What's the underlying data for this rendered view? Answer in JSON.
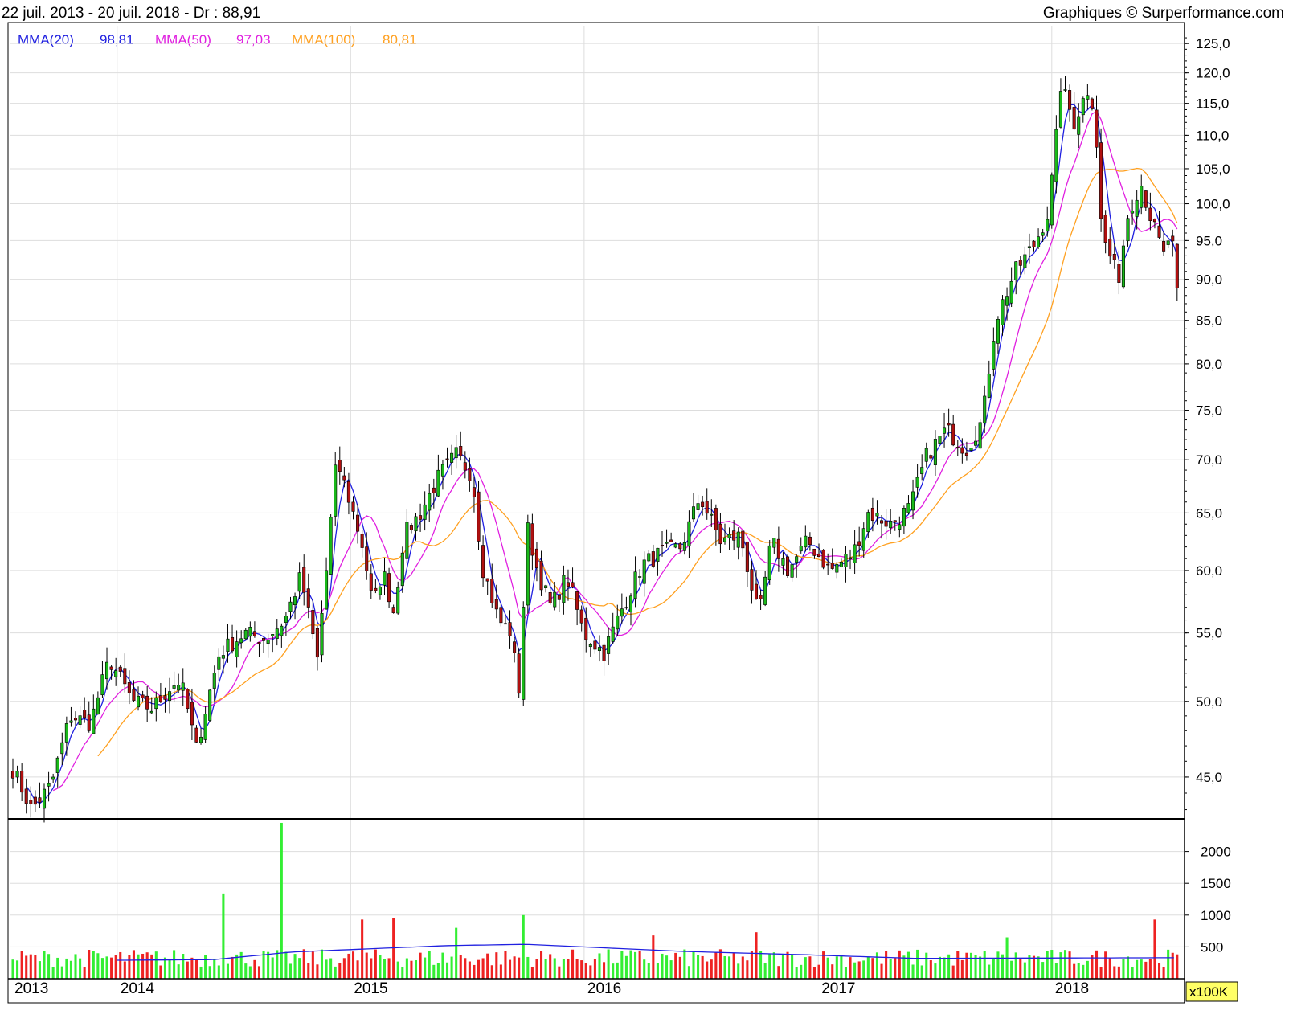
{
  "header": {
    "range": "22 juil. 2013 - 20 juil. 2018 - Dr : 88,91",
    "credit": "Graphiques © Surperformance.com"
  },
  "legend": [
    {
      "label": "MMA(20)",
      "value": "98,81",
      "color": "#2020e0"
    },
    {
      "label": "MMA(50)",
      "value": "97,03",
      "color": "#e020e0"
    },
    {
      "label": "MMA(100)",
      "value": "80,81",
      "color": "#ffa020"
    }
  ],
  "colors": {
    "up": "#1ab91a",
    "down": "#b01010",
    "vol_up": "#33ee33",
    "vol_down": "#ee2222",
    "grid": "#dddddd"
  },
  "chart_data": [
    {
      "type": "candlestick",
      "scale": "log",
      "ylim": [
        42.5,
        127
      ],
      "yticks": [
        45,
        50,
        55,
        60,
        65,
        70,
        75,
        80,
        85,
        90,
        95,
        100,
        105,
        110,
        115,
        120,
        125
      ],
      "ytick_labels": [
        "45,0",
        "50,0",
        "55,0",
        "60,0",
        "65,0",
        "70,0",
        "75,0",
        "80,0",
        "85,0",
        "90,0",
        "95,0",
        "100,0",
        "105,0",
        "110,0",
        "115,0",
        "120,0",
        "125,0"
      ],
      "x_labels": [
        "2013",
        "2014",
        "2015",
        "2016",
        "2017",
        "2018"
      ],
      "x_label_dates": [
        "2013-07-22",
        "2014-01-01",
        "2015-01-01",
        "2016-01-01",
        "2017-01-01",
        "2018-01-01"
      ],
      "x_range": [
        "2013-07-22",
        "2018-07-20"
      ],
      "close_keypoints": [
        [
          "2013-07-22",
          45.5
        ],
        [
          "2013-08-20",
          43.0
        ],
        [
          "2013-09-20",
          44.5
        ],
        [
          "2013-10-20",
          49.0
        ],
        [
          "2013-11-20",
          48.5
        ],
        [
          "2013-12-20",
          53.0
        ],
        [
          "2014-01-25",
          50.0
        ],
        [
          "2014-02-25",
          49.5
        ],
        [
          "2014-03-25",
          51.0
        ],
        [
          "2014-04-10",
          51.5
        ],
        [
          "2014-05-05",
          46.8
        ],
        [
          "2014-06-10",
          53.5
        ],
        [
          "2014-07-20",
          55.0
        ],
        [
          "2014-08-20",
          54.5
        ],
        [
          "2014-09-20",
          56.0
        ],
        [
          "2014-10-15",
          59.5
        ],
        [
          "2014-11-10",
          53.0
        ],
        [
          "2014-11-25",
          60.5
        ],
        [
          "2014-12-10",
          70.0
        ],
        [
          "2014-12-31",
          66.0
        ],
        [
          "2015-01-20",
          62.0
        ],
        [
          "2015-02-05",
          57.0
        ],
        [
          "2015-02-20",
          60.0
        ],
        [
          "2015-03-10",
          56.5
        ],
        [
          "2015-03-25",
          63.0
        ],
        [
          "2015-04-20",
          65.0
        ],
        [
          "2015-05-20",
          68.5
        ],
        [
          "2015-06-15",
          70.5
        ],
        [
          "2015-07-10",
          68.5
        ],
        [
          "2015-07-25",
          60.5
        ],
        [
          "2015-08-20",
          56.0
        ],
        [
          "2015-09-10",
          55.0
        ],
        [
          "2015-09-20",
          50.0
        ],
        [
          "2015-10-05",
          63.5
        ],
        [
          "2015-10-20",
          60.0
        ],
        [
          "2015-11-10",
          57.0
        ],
        [
          "2015-12-05",
          59.5
        ],
        [
          "2015-12-31",
          55.0
        ],
        [
          "2016-02-01",
          53.5
        ],
        [
          "2016-03-01",
          57.0
        ],
        [
          "2016-04-01",
          60.5
        ],
        [
          "2016-05-01",
          61.5
        ],
        [
          "2016-06-01",
          62.0
        ],
        [
          "2016-06-30",
          66.5
        ],
        [
          "2016-08-01",
          62.5
        ],
        [
          "2016-09-01",
          63.0
        ],
        [
          "2016-09-30",
          56.0
        ],
        [
          "2016-10-20",
          62.5
        ],
        [
          "2016-11-15",
          60.0
        ],
        [
          "2016-12-15",
          62.5
        ],
        [
          "2017-01-20",
          60.0
        ],
        [
          "2017-02-25",
          61.5
        ],
        [
          "2017-03-20",
          65.0
        ],
        [
          "2017-04-25",
          64.0
        ],
        [
          "2017-05-25",
          65.5
        ],
        [
          "2017-06-20",
          70.5
        ],
        [
          "2017-07-20",
          73.0
        ],
        [
          "2017-08-20",
          71.0
        ],
        [
          "2017-09-15",
          74.0
        ],
        [
          "2017-10-05",
          85.0
        ],
        [
          "2017-11-05",
          91.0
        ],
        [
          "2017-12-05",
          94.5
        ],
        [
          "2017-12-25",
          98.5
        ],
        [
          "2018-01-05",
          106.0
        ],
        [
          "2018-01-15",
          118.0
        ],
        [
          "2018-02-05",
          112.0
        ],
        [
          "2018-03-01",
          118.0
        ],
        [
          "2018-03-10",
          112.0
        ],
        [
          "2018-03-20",
          96.0
        ],
        [
          "2018-04-15",
          90.0
        ],
        [
          "2018-05-01",
          99.0
        ],
        [
          "2018-05-20",
          103.0
        ],
        [
          "2018-06-05",
          98.0
        ],
        [
          "2018-06-25",
          93.0
        ],
        [
          "2018-07-05",
          96.0
        ],
        [
          "2018-07-20",
          88.91
        ]
      ],
      "series": [
        {
          "name": "MMA(20)",
          "last": 98.81
        },
        {
          "name": "MMA(50)",
          "last": 97.03
        },
        {
          "name": "MMA(100)",
          "last": 80.81
        }
      ]
    },
    {
      "type": "bar",
      "name": "volume",
      "unit": "x100K",
      "yticks": [
        500,
        1000,
        1500,
        2000
      ],
      "ytick_labels": [
        "500",
        "1000",
        "1500",
        "2000"
      ],
      "ylim": [
        0,
        2500
      ],
      "typical_range": [
        180,
        700
      ],
      "spikes": [
        [
          "2014-06-15",
          1340
        ],
        [
          "2014-09-15",
          2450
        ],
        [
          "2015-01-20",
          930
        ],
        [
          "2015-03-10",
          950
        ],
        [
          "2015-06-15",
          800
        ],
        [
          "2015-09-25",
          1000
        ],
        [
          "2016-04-20",
          680
        ],
        [
          "2016-09-25",
          730
        ],
        [
          "2017-10-20",
          650
        ],
        [
          "2018-06-10",
          930
        ]
      ],
      "avg_keypoints": [
        [
          "2014-01-01",
          290
        ],
        [
          "2014-06-01",
          300
        ],
        [
          "2014-10-01",
          420
        ],
        [
          "2015-06-01",
          520
        ],
        [
          "2015-10-01",
          540
        ],
        [
          "2016-06-01",
          430
        ],
        [
          "2016-12-01",
          380
        ],
        [
          "2017-06-01",
          320
        ],
        [
          "2018-07-20",
          330
        ]
      ]
    }
  ]
}
